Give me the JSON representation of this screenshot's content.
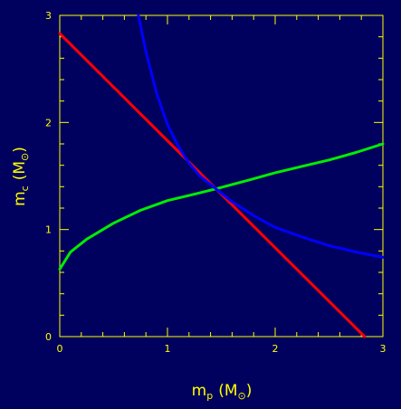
{
  "chart_data": {
    "type": "line",
    "title": "",
    "xlabel": {
      "main": "m",
      "sub": "p",
      "unit": "M",
      "unit_sub": "⊙"
    },
    "ylabel": {
      "main": "m",
      "sub": "c",
      "unit": "M",
      "unit_sub": "⊙"
    },
    "xlim": [
      0,
      3
    ],
    "ylim": [
      0,
      3
    ],
    "xticks": [
      "0",
      "1",
      "2",
      "3"
    ],
    "yticks": [
      "0",
      "1",
      "2",
      "3"
    ],
    "grid": false,
    "legend": "none",
    "colors": {
      "background": "#00005e",
      "axes": "#ffff00"
    },
    "series": [
      {
        "color": "#ff0000",
        "x": [
          0,
          0.5,
          1.0,
          1.45,
          2.0,
          2.5,
          2.83
        ],
        "y": [
          2.83,
          2.33,
          1.83,
          1.38,
          0.83,
          0.33,
          0
        ]
      },
      {
        "color": "#00ee00",
        "x": [
          0,
          0.1,
          0.25,
          0.5,
          0.75,
          1.0,
          1.25,
          1.45,
          1.75,
          2.0,
          2.25,
          2.5,
          2.75,
          3.0
        ],
        "y": [
          0.63,
          0.79,
          0.91,
          1.06,
          1.18,
          1.27,
          1.33,
          1.38,
          1.46,
          1.53,
          1.59,
          1.65,
          1.72,
          1.8
        ]
      },
      {
        "color": "#0000ff",
        "x": [
          0.73,
          0.8,
          0.9,
          1.0,
          1.1,
          1.2,
          1.3,
          1.45,
          1.6,
          1.8,
          2.0,
          2.25,
          2.5,
          2.75,
          3.0
        ],
        "y": [
          3.0,
          2.66,
          2.27,
          1.98,
          1.78,
          1.62,
          1.5,
          1.38,
          1.26,
          1.13,
          1.02,
          0.93,
          0.85,
          0.79,
          0.74
        ]
      }
    ]
  }
}
